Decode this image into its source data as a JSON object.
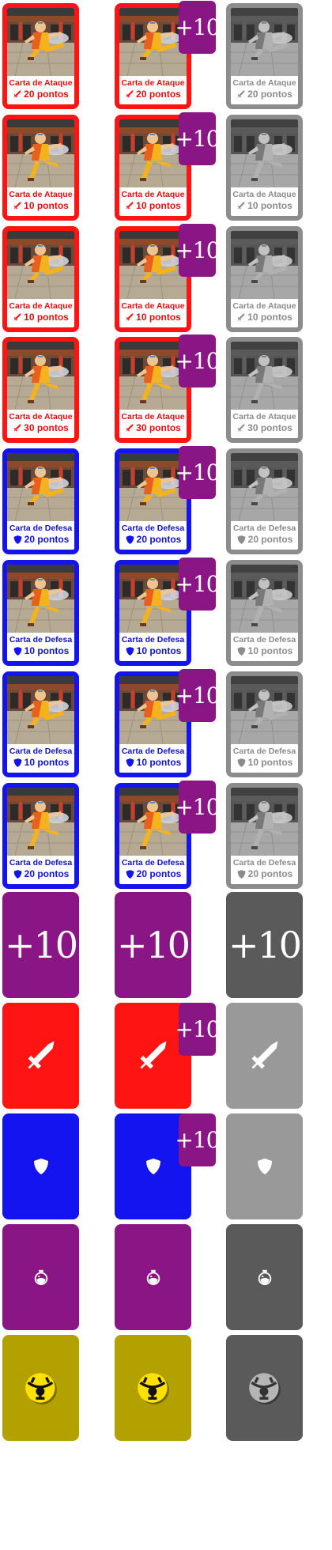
{
  "colors": {
    "attack": "#ff1414",
    "defense": "#1414f0",
    "disabled": "#8c8c8c",
    "bonus": "#8a1685",
    "special": "#b3a100",
    "solid_gray": "#999999",
    "solid_dark": "#5a5a5a"
  },
  "bonus_label": "+10",
  "rows": [
    {
      "type": "attack",
      "title": "Carta de Ataque",
      "points": "20 pontos",
      "icon": "sword-icon"
    },
    {
      "type": "attack",
      "title": "Carta de Ataque",
      "points": "10 pontos",
      "icon": "sword-icon"
    },
    {
      "type": "attack",
      "title": "Carta de Ataque",
      "points": "10 pontos",
      "icon": "sword-icon"
    },
    {
      "type": "attack",
      "title": "Carta de Ataque",
      "points": "30 pontos",
      "icon": "sword-icon"
    },
    {
      "type": "defense",
      "title": "Carta de Defesa",
      "points": "20 pontos",
      "icon": "shield-icon"
    },
    {
      "type": "defense",
      "title": "Carta de Defesa",
      "points": "10 pontos",
      "icon": "shield-icon"
    },
    {
      "type": "defense",
      "title": "Carta de Defesa",
      "points": "10 pontos",
      "icon": "shield-icon"
    },
    {
      "type": "defense",
      "title": "Carta de Defesa",
      "points": "20 pontos",
      "icon": "shield-icon"
    }
  ],
  "card_backs": [
    {
      "name": "bonus",
      "icon": "plus-ten-text"
    },
    {
      "name": "attack",
      "icon": "sword-icon"
    },
    {
      "name": "defense",
      "icon": "shield-icon"
    },
    {
      "name": "potion",
      "icon": "potion-icon"
    },
    {
      "name": "special",
      "icon": "crest-icon"
    }
  ]
}
